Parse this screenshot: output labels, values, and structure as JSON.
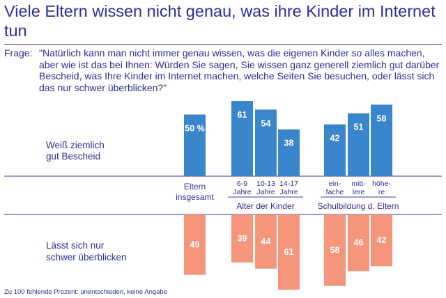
{
  "title": "Viele Eltern wissen nicht genau, was ihre Kinder im Internet tun",
  "question": {
    "label": "Frage:",
    "text": "\"Natürlich kann man nicht immer genau wissen, was die eigenen Kinder so alles machen, aber wie ist das bei Ihnen: Würden Sie sagen, Sie wissen ganz generell ziemlich gut darüber Bescheid, was Ihre Kinder im Internet machen, welche Seiten Sie besuchen, oder lässt sich das nur schwer überblicken?\""
  },
  "footnote": "Zu 100 fehlende Prozent: unentschieden, keine Angabe",
  "colors": {
    "blue": "#3a86cc",
    "salmon": "#f4957c",
    "text": "#2e2e8e",
    "rule": "#3a3aa8"
  },
  "chart_data": {
    "type": "bar",
    "title": "Viele Eltern wissen nicht genau, was ihre Kinder im Internet tun",
    "unit": "%",
    "ylim": [
      0,
      70
    ],
    "categories": [
      {
        "id": "total",
        "label": [
          "Eltern",
          "insgesamt"
        ]
      },
      {
        "id": "age-6-9",
        "label": [
          "6-9",
          "Jahre"
        ]
      },
      {
        "id": "age-10-13",
        "label": [
          "10-13",
          "Jahre"
        ]
      },
      {
        "id": "age-14-17",
        "label": [
          "14-17",
          "Jahre"
        ]
      },
      {
        "id": "edu-simple",
        "label": [
          "ein-",
          "fache"
        ]
      },
      {
        "id": "edu-middle",
        "label": [
          "mitt-",
          "lere"
        ]
      },
      {
        "id": "edu-higher",
        "label": [
          "höhe-",
          "re"
        ]
      }
    ],
    "groups": [
      {
        "label": "Alter der Kinder",
        "members": [
          "age-6-9",
          "age-10-13",
          "age-14-17"
        ]
      },
      {
        "label": "Schulbildung d. Eltern",
        "members": [
          "edu-simple",
          "edu-middle",
          "edu-higher"
        ]
      }
    ],
    "series": [
      {
        "name": "Weiß ziemlich gut Bescheid",
        "label_lines": [
          "Weiß ziemlich",
          "gut Bescheid"
        ],
        "direction": "up",
        "color": "#3a86cc",
        "values": [
          50,
          61,
          54,
          38,
          42,
          51,
          58
        ],
        "value_labels": [
          "50 %",
          "61",
          "54",
          "38",
          "42",
          "51",
          "58"
        ]
      },
      {
        "name": "Lässt sich nur schwer überblicken",
        "label_lines": [
          "Lässt sich nur",
          "schwer überblicken"
        ],
        "direction": "down",
        "color": "#f4957c",
        "values": [
          49,
          39,
          44,
          61,
          58,
          46,
          42
        ],
        "value_labels": [
          "49",
          "39",
          "44",
          "61",
          "58",
          "46",
          "42"
        ]
      }
    ]
  }
}
